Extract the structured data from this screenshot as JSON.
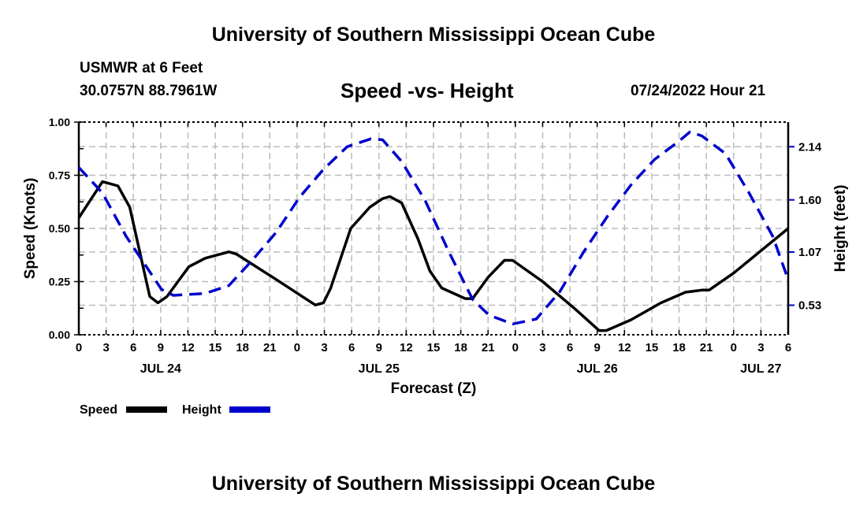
{
  "header": {
    "title": "University of Southern Mississippi Ocean Cube",
    "station": "USMWR at 6 Feet",
    "coords": "30.0757N  88.7961W",
    "subtitle": "Speed -vs- Height",
    "datetime": "07/24/2022 Hour 21"
  },
  "footer": {
    "title": "University of Southern Mississippi Ocean Cube"
  },
  "chart_data": {
    "type": "line",
    "title": "Speed -vs- Height",
    "xlabel": "Forecast (Z)",
    "ylabel": "Speed (Knots)",
    "y2label": "Height (feet)",
    "x_units": "hours since JUL 24 00Z",
    "xlim": [
      0,
      78
    ],
    "ylim": [
      0,
      1.0
    ],
    "y2lim": [
      0.23,
      2.39
    ],
    "grid": true,
    "x_tick_step_hours": 3,
    "y_ticks": [
      "0.00",
      "0.25",
      "0.50",
      "0.75",
      "1.00"
    ],
    "y2_ticks": [
      "0.53",
      "1.07",
      "1.60",
      "2.14"
    ],
    "date_labels": [
      {
        "hour": 9,
        "label": "JUL 24"
      },
      {
        "hour": 33,
        "label": "JUL 25"
      },
      {
        "hour": 57,
        "label": "JUL 26"
      },
      {
        "hour": 75,
        "label": "JUL 27"
      }
    ],
    "legend": {
      "placement": "bottom-left",
      "speed_label": "Speed",
      "height_label": "Height"
    },
    "series": [
      {
        "name": "Speed",
        "axis": "left",
        "color": "#000000",
        "dash": false,
        "x": [
          0,
          2.6,
          4.3,
          5.6,
          7.8,
          8.7,
          9.7,
          12.1,
          13.9,
          16.5,
          17.3,
          21.7,
          26,
          26.9,
          27.7,
          29.9,
          32,
          33.4,
          34.2,
          35.5,
          37.3,
          38.6,
          39.9,
          42.5,
          43.3,
          45,
          46.8,
          47.7,
          51,
          54.6,
          57.2,
          58,
          60.7,
          64,
          66.7,
          68.5,
          69.3,
          72,
          78
        ],
        "y": [
          0.55,
          0.72,
          0.7,
          0.6,
          0.18,
          0.15,
          0.18,
          0.32,
          0.36,
          0.39,
          0.38,
          0.26,
          0.14,
          0.15,
          0.22,
          0.5,
          0.6,
          0.64,
          0.65,
          0.62,
          0.45,
          0.3,
          0.22,
          0.17,
          0.17,
          0.27,
          0.35,
          0.35,
          0.25,
          0.12,
          0.02,
          0.02,
          0.07,
          0.15,
          0.2,
          0.21,
          0.21,
          0.29,
          0.5
        ]
      },
      {
        "name": "Height",
        "axis": "right",
        "color": "#0000cc",
        "dash": true,
        "x": [
          0,
          2.6,
          5.2,
          7.8,
          9.1,
          10.4,
          13.9,
          16.5,
          19.1,
          21.7,
          24.3,
          26.9,
          29.5,
          32.1,
          33.4,
          35.5,
          38.1,
          40.7,
          43.3,
          45.1,
          47.7,
          50.3,
          52.9,
          55.5,
          58.1,
          60.7,
          63.3,
          65.9,
          67.2,
          68.5,
          71.1,
          73.7,
          76.3,
          78
        ],
        "y": [
          1.93,
          1.67,
          1.23,
          0.87,
          0.69,
          0.63,
          0.65,
          0.73,
          0.99,
          1.27,
          1.63,
          1.91,
          2.14,
          2.22,
          2.21,
          1.99,
          1.59,
          1.07,
          0.59,
          0.43,
          0.34,
          0.39,
          0.67,
          1.07,
          1.43,
          1.75,
          2.01,
          2.19,
          2.29,
          2.25,
          2.07,
          1.67,
          1.23,
          0.79
        ]
      }
    ]
  }
}
